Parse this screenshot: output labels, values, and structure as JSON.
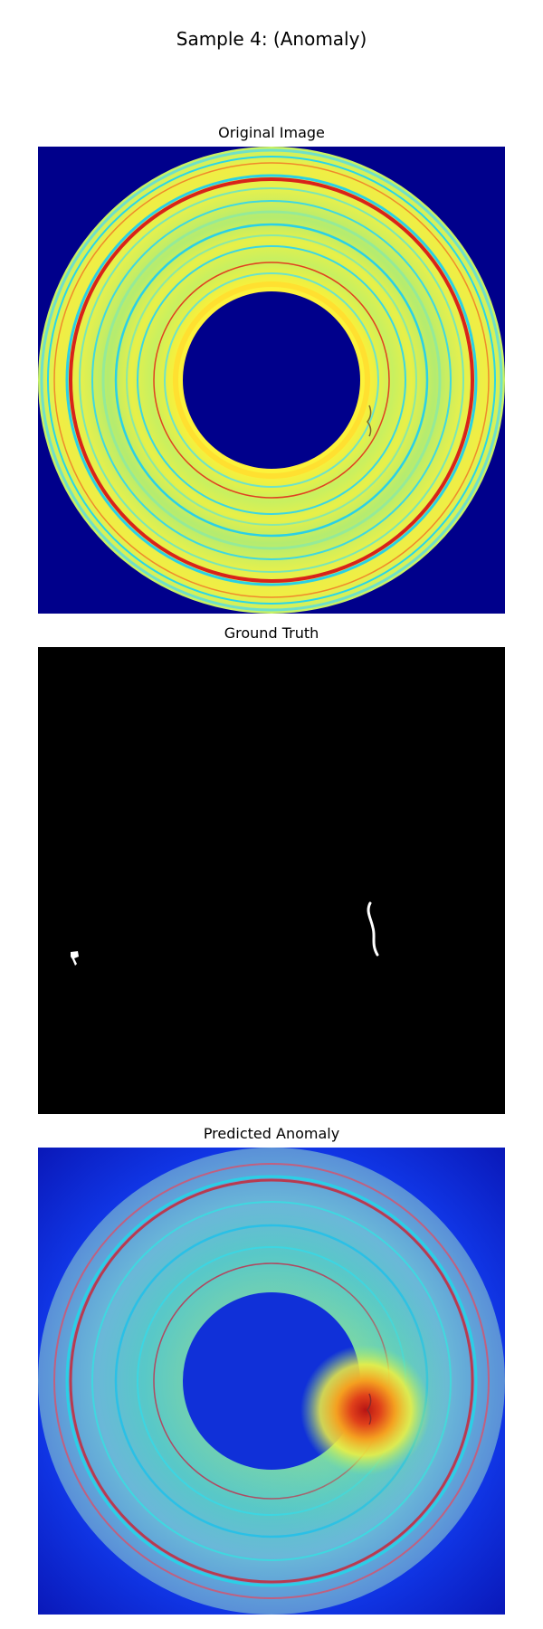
{
  "figure": {
    "title": "Sample 4: (Anomaly)"
  },
  "panels": [
    {
      "title": "Original Image",
      "image": "sensor-disc-colormap"
    },
    {
      "title": "Ground Truth",
      "image": "binary-anomaly-mask"
    },
    {
      "title": "Predicted Anomaly",
      "image": "anomaly-heatmap-overlay"
    }
  ],
  "colors": {
    "background_navy": "#00008b",
    "ring_yellow": "#f2f03a",
    "ring_cyan": "#1fd6e6",
    "ring_red": "#d8231a",
    "mask_black": "#000000",
    "mask_white": "#ffffff",
    "heat_blue": "#1040e0",
    "heat_hot": "#d81a10"
  }
}
